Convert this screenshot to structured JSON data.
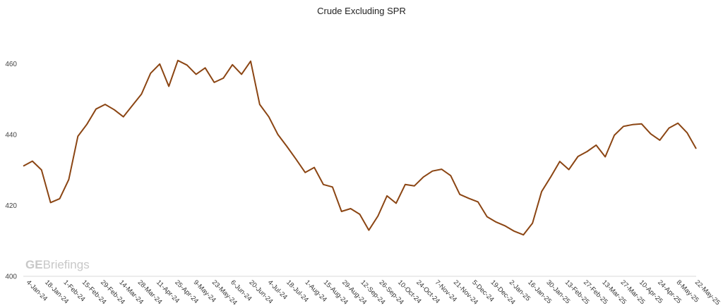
{
  "chart_data": {
    "type": "line",
    "title": "Crude Excluding SPR",
    "xlabel": "",
    "ylabel": "",
    "ylim": [
      400,
      470
    ],
    "yticks": [
      400,
      420,
      440,
      460
    ],
    "grid": false,
    "legend": "none",
    "line_color": "#8B4513",
    "watermark": {
      "bold": "GE",
      "rest": "Briefings"
    },
    "x_tick_labels": [
      "4-Jan-24",
      "18-Jan-24",
      "1-Feb-24",
      "15-Feb-24",
      "29-Feb-24",
      "14-Mar-24",
      "28-Mar-24",
      "11-Apr-24",
      "25-Apr-24",
      "9-May-24",
      "23-May-24",
      "6-Jun-24",
      "20-Jun-24",
      "4-Jul-24",
      "18-Jul-24",
      "1-Aug-24",
      "15-Aug-24",
      "29-Aug-24",
      "12-Sep-24",
      "26-Sep-24",
      "10-Oct-24",
      "24-Oct-24",
      "7-Nov-24",
      "21-Nov-24",
      "5-Dec-24",
      "19-Dec-24",
      "2-Jan-25",
      "16-Jan-25",
      "30-Jan-25",
      "13-Feb-25",
      "27-Feb-25",
      "13-Mar-25",
      "27-Mar-25",
      "10-Apr-25",
      "24-Apr-25",
      "8-May-25",
      "22-May-25"
    ],
    "series": [
      {
        "values": [
          431.1,
          432.5,
          430.0,
          420.8,
          421.9,
          427.3,
          439.5,
          442.9,
          447.2,
          448.5,
          447.0,
          445.0,
          448.2,
          451.4,
          457.3,
          459.9,
          453.6,
          460.9,
          459.6,
          457.0,
          458.8,
          454.7,
          455.9,
          459.7,
          457.0,
          460.7,
          448.5,
          445.0,
          440.0,
          436.6,
          433.0,
          429.3,
          430.7,
          425.9,
          425.2,
          418.3,
          419.1,
          417.5,
          413.0,
          417.0,
          422.7,
          420.6,
          425.9,
          425.5,
          428.0,
          429.7,
          430.2,
          428.4,
          423.1,
          422.0,
          421.0,
          416.8,
          415.3,
          414.2,
          412.7,
          411.7,
          415.0,
          423.9,
          428.0,
          432.4,
          430.1,
          433.8,
          435.2,
          437.0,
          433.7,
          439.8,
          442.3,
          442.8,
          443.0,
          440.2,
          438.4,
          441.8,
          443.2,
          440.5,
          436.0
        ]
      }
    ]
  }
}
